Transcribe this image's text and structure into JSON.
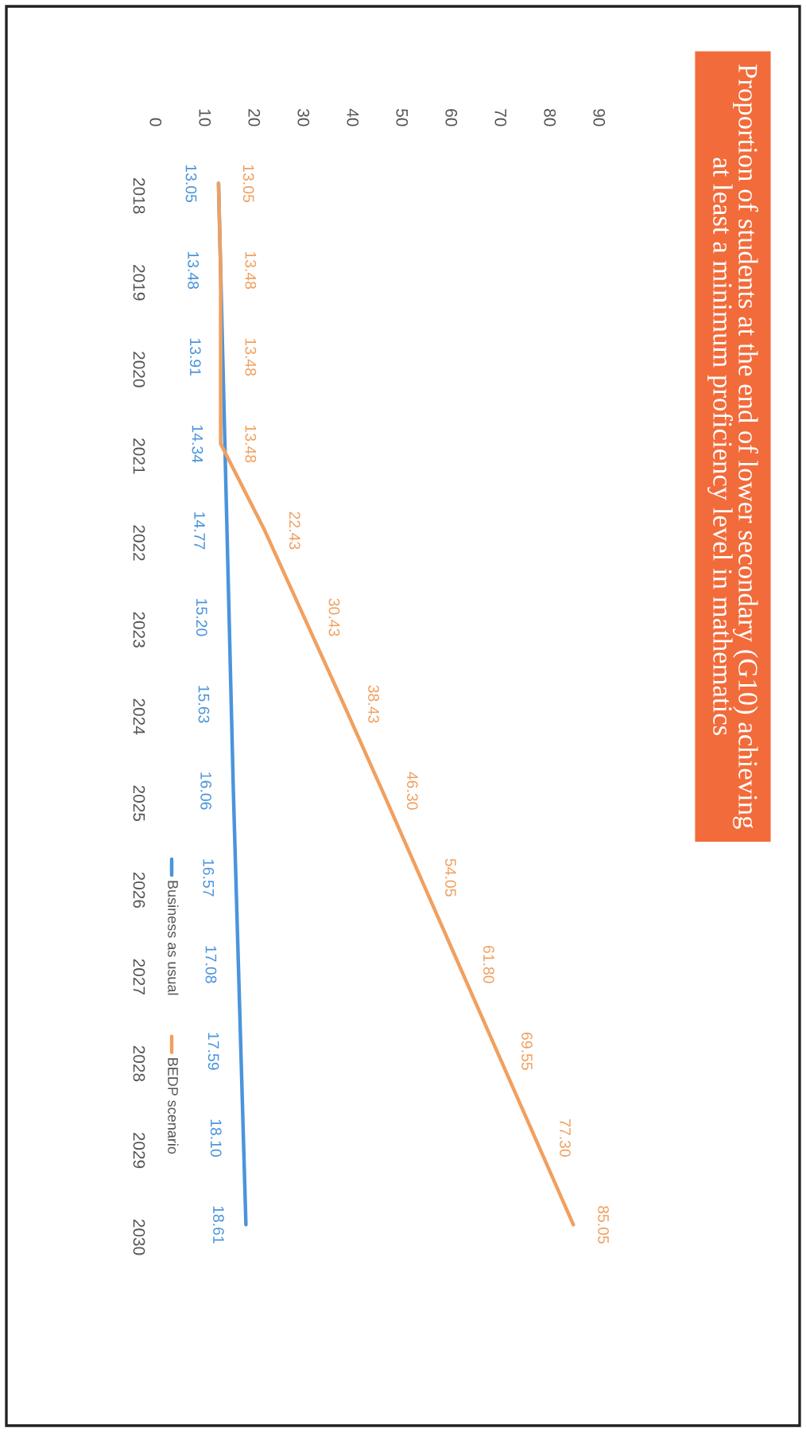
{
  "chart_data": {
    "type": "line",
    "title": "Proportion of students at the end of lower secondary (G10) achieving\nat least a minimum proficiency level in mathematics",
    "categories": [
      "2018",
      "2019",
      "2020",
      "2021",
      "2022",
      "2023",
      "2024",
      "2025",
      "2026",
      "2027",
      "2028",
      "2029",
      "2030"
    ],
    "series": [
      {
        "name": "Business as usual",
        "color": "#4a94dc",
        "values": [
          13.05,
          13.48,
          13.91,
          14.34,
          14.77,
          15.2,
          15.63,
          16.06,
          16.57,
          17.08,
          17.59,
          18.1,
          18.61
        ],
        "value_labels": [
          "13.05",
          "13.48",
          "13.91",
          "14.34",
          "14.77",
          "15.20",
          "15.63",
          "16.06",
          "16.57",
          "17.08",
          "17.59",
          "18.10",
          "18.61"
        ]
      },
      {
        "name": "BEDP scenario",
        "color": "#f0a060",
        "values": [
          13.05,
          13.48,
          13.48,
          13.48,
          22.43,
          30.43,
          38.43,
          46.3,
          54.05,
          61.8,
          69.55,
          77.3,
          85.05
        ],
        "value_labels": [
          "13.05",
          "13.48",
          "13.48",
          "13.48",
          "22.43",
          "30.43",
          "38.43",
          "46.30",
          "54.05",
          "61.80",
          "69.55",
          "77.30",
          "85.05"
        ]
      }
    ],
    "orientation": "horizontal",
    "xlim": [
      0,
      90
    ],
    "xticks": [
      0,
      10,
      20,
      30,
      40,
      50,
      60,
      70,
      80,
      90
    ],
    "grid": false,
    "legend": "bottom",
    "marker": "none",
    "line_style": "solid"
  }
}
